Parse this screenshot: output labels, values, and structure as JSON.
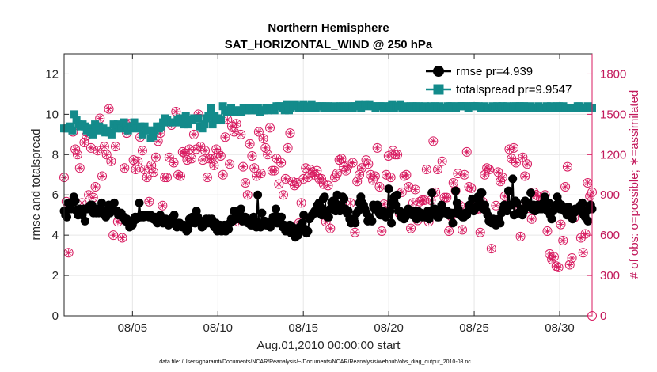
{
  "chart_data": {
    "type": "line",
    "title": "Northern Hemisphere",
    "subtitle": "SAT_HORIZONTAL_WIND @ 250 hPa",
    "xlabel": "Aug.01,2010 00:00:00 start",
    "ylabel": "rmse and totalspread",
    "ylabel_right": "# of obs: o=possible; ∗=assimilated",
    "footnote": "data file: /Users/gharamti/Documents/NCAR/Reanalysis/~/Documents/NCAR/Reanalysis/webpub/obs_diag_output_2010-08.nc",
    "xlim": [
      1.0,
      31.9
    ],
    "ylim": [
      0,
      13
    ],
    "ylim_right": [
      0,
      1950
    ],
    "x_ticks": [
      5,
      10,
      15,
      20,
      25,
      30
    ],
    "x_tick_labels": [
      "08/05",
      "08/10",
      "08/15",
      "08/20",
      "08/25",
      "08/30"
    ],
    "y_ticks": [
      0,
      2,
      4,
      6,
      8,
      10,
      12
    ],
    "y_ticks_right": [
      0,
      300,
      600,
      900,
      1200,
      1500,
      1800
    ],
    "colors": {
      "rmse": "#000000",
      "spread": "#138b8b",
      "obs": "#d81b60",
      "axis": "#262626"
    },
    "series": [
      {
        "name": "rmse pr=4.939",
        "marker": "circle",
        "axis": "left",
        "values": [
          5.2,
          5.0,
          4.9,
          5.6,
          5.5,
          5.3,
          5.6,
          5.9,
          5.7,
          5.2,
          5.0,
          5.3,
          5.2,
          5.0,
          5.3,
          4.7,
          5.3,
          5.3,
          5.4,
          5.5,
          5.5,
          5.1,
          5.2,
          5.1,
          5.3,
          5.1,
          5.3,
          5.6,
          5.2,
          5.0,
          4.9,
          5.2,
          5.5,
          5.1,
          5.2,
          5.3,
          5.6,
          5.2,
          5.2,
          5.0,
          5.0,
          5.1,
          4.9,
          4.9,
          4.7,
          4.8,
          4.6,
          4.4,
          4.5,
          4.5,
          4.7,
          4.9,
          4.8,
          4.9,
          5.6,
          4.9,
          5.0,
          4.9,
          5.0,
          5.0,
          5.0,
          4.9,
          5.0,
          4.9,
          4.8,
          4.9,
          4.7,
          4.6,
          4.8,
          5.0,
          4.7,
          4.6,
          4.7,
          4.8,
          4.6,
          4.5,
          4.6,
          4.7,
          4.9,
          5.0,
          4.5,
          4.4,
          4.6,
          4.6,
          4.5,
          4.4,
          4.5,
          4.4,
          4.2,
          4.3,
          4.8,
          4.6,
          4.9,
          4.8,
          4.6,
          5.2,
          4.9,
          4.7,
          4.7,
          4.4,
          4.5,
          4.7,
          4.8,
          4.6,
          4.8,
          4.7,
          4.8,
          4.5,
          4.4,
          4.6,
          4.2,
          4.4,
          4.5,
          4.2,
          4.4,
          4.5,
          4.2,
          4.4,
          4.3,
          4.6,
          4.8,
          4.7,
          5.2,
          4.9,
          4.8,
          5.1,
          5.1,
          5.3,
          4.7,
          4.9,
          4.9,
          4.8,
          4.6,
          4.7,
          4.5,
          4.5,
          4.9,
          4.7,
          4.4,
          6.0,
          4.5,
          4.4,
          5.1,
          4.6,
          4.7,
          4.5,
          4.6,
          4.6,
          4.4,
          4.7,
          4.9,
          4.8,
          5.3,
          4.6,
          4.9,
          4.7,
          4.9,
          4.4,
          4.5,
          4.2,
          4.3,
          4.4,
          4.5,
          4.1,
          4.4,
          4.3,
          3.9,
          4.2,
          4.0,
          4.4,
          4.3,
          4.6,
          5.0,
          4.3,
          4.1,
          4.2,
          4.8,
          4.9,
          5.0,
          5.1,
          5.2,
          5.1,
          5.5,
          5.6,
          5.4,
          5.0,
          5.8,
          5.9,
          5.2,
          4.9,
          4.9,
          5.3,
          5.6,
          5.7,
          5.3,
          5.2,
          6.0,
          5.5,
          5.2,
          5.4,
          5.9,
          5.8,
          5.3,
          5.1,
          5.2,
          4.8,
          4.6,
          4.8,
          4.8,
          4.6,
          5.1,
          5.2,
          5.6,
          5.9,
          5.6,
          5.5,
          5.3,
          5.1,
          4.7,
          4.9,
          4.8,
          4.7,
          5.5,
          5.3,
          5.3,
          5.5,
          5.1,
          5.0,
          5.0,
          5.2,
          5.0,
          4.9,
          5.1,
          6.3,
          5.2,
          4.6,
          5.6,
          5.9,
          5.5,
          6.0,
          5.2,
          5.2,
          4.9,
          5.0,
          4.8,
          4.9,
          5.0,
          5.3,
          5.2,
          5.2,
          5.0,
          5.2,
          5.2,
          4.8,
          5.2,
          5.0,
          5.1,
          4.9,
          5.0,
          4.9,
          5.0,
          5.2,
          4.8,
          5.0,
          6.1,
          5.1,
          5.3,
          5.0,
          4.9,
          4.9,
          5.2,
          5.5,
          5.2,
          5.1,
          5.1,
          5.2,
          5.0,
          5.0,
          5.1,
          4.6,
          5.1,
          6.2,
          5.6,
          5.3,
          5.0,
          5.0,
          4.9,
          4.9,
          5.1,
          5.0,
          5.2,
          5.5,
          5.3,
          5.8,
          5.2,
          5.3,
          5.4,
          5.9,
          5.6,
          6.1,
          6.1,
          5.3,
          5.5,
          5.2,
          5.0,
          4.7,
          4.8,
          4.6,
          4.8,
          4.6,
          4.5,
          4.7,
          4.8,
          4.6,
          5.1,
          5.3,
          5.5,
          5.4,
          5.2,
          6.2,
          5.5,
          5.5,
          6.8,
          5.0,
          5.7,
          5.6,
          5.1,
          5.1,
          5.3,
          5.0,
          5.2,
          5.7,
          5.6,
          5.5,
          5.4,
          6.1,
          5.3,
          5.5,
          5.2,
          5.3,
          5.5,
          5.3,
          5.3,
          5.3,
          5.6,
          5.9,
          5.4,
          5.2,
          5.6,
          5.0,
          4.8,
          5.2,
          5.3,
          5.5,
          5.9,
          5.6,
          5.3,
          5.5,
          5.4,
          5.2,
          5.2,
          5.0,
          5.4,
          5.1,
          5.0,
          4.8,
          5.1,
          5.3,
          5.2,
          5.3,
          5.4,
          5.5,
          5.6,
          5.0,
          4.9,
          5.2,
          4.7,
          5.4,
          5.5,
          5.3
        ]
      },
      {
        "name": "totalspread pr=9.9547",
        "marker": "square",
        "axis": "left",
        "values": [
          9.3,
          9.3,
          9.3,
          9.4,
          9.2,
          10.0,
          9.7,
          9.5,
          9.4,
          9.5,
          9.4,
          9.2,
          9.3,
          9.1,
          9.0,
          9.5,
          9.3,
          9.4,
          9.2,
          9.3,
          9.1,
          9.2,
          9.1,
          9.0,
          9.5,
          9.3,
          9.5,
          9.3,
          9.3,
          9.6,
          9.4,
          9.2,
          9.3,
          9.4,
          9.6,
          9.3,
          9.3,
          9.4,
          9.0,
          9.4,
          9.2,
          9.2,
          8.8,
          8.9,
          9.2,
          9.4,
          9.3,
          9.4,
          9.6,
          9.8,
          9.7,
          9.6,
          9.6,
          9.6,
          9.6,
          9.7,
          9.8,
          9.6,
          9.5,
          9.9,
          9.5,
          9.7,
          9.7,
          9.8,
          9.8,
          9.8,
          9.4,
          9.3,
          9.5,
          9.8,
          9.9,
          10.3,
          9.5,
          9.9,
          9.7,
          9.8,
          9.7,
          10.4,
          10.2,
          10.1,
          10.2,
          10.3,
          10.1,
          10.2,
          10.1,
          10.2,
          10.1,
          10.3,
          10.2,
          10.2,
          10.3,
          10.2,
          10.3,
          10.2,
          10.3,
          10.1,
          10.2,
          10.2,
          10.3,
          10.2,
          10.3,
          10.3,
          10.2,
          10.4,
          10.4,
          10.4,
          10.3,
          10.2,
          10.5,
          10.2,
          10.3,
          10.4,
          10.5,
          10.4,
          10.3,
          10.4,
          10.5,
          10.3,
          10.3,
          10.4,
          10.5,
          10.3,
          10.3,
          10.4,
          10.4,
          10.4,
          10.3,
          10.4,
          10.4,
          10.3,
          10.3,
          10.4,
          10.3,
          10.3,
          10.4,
          10.4,
          10.3,
          10.3,
          10.4,
          10.4,
          10.3,
          10.4,
          10.4,
          10.5,
          10.3,
          10.4,
          10.5,
          10.4,
          10.5,
          10.4,
          10.4,
          10.3,
          10.4,
          10.4,
          10.4,
          10.3,
          10.4,
          10.3,
          10.4,
          10.5,
          10.3,
          10.4,
          10.4,
          10.5,
          10.3,
          10.4,
          10.3,
          10.3,
          10.4,
          10.4,
          10.3,
          10.4,
          10.4,
          10.3,
          10.3,
          10.4,
          10.3,
          10.3,
          10.4,
          10.3,
          10.4,
          10.3,
          10.4,
          10.3,
          10.3,
          10.3,
          10.4,
          10.4,
          10.4,
          10.3,
          10.3,
          10.4,
          10.4,
          10.4,
          10.4,
          10.4,
          10.3,
          10.4,
          10.4,
          10.4,
          10.4,
          10.4,
          10.3,
          10.3,
          10.4,
          10.3,
          10.3,
          10.3,
          10.4,
          10.3,
          10.4,
          10.3,
          10.4,
          10.4,
          10.3,
          10.4,
          10.3,
          10.3,
          10.4,
          10.4,
          10.3,
          10.4,
          10.4,
          10.4,
          10.3,
          10.3,
          10.4,
          10.3,
          10.3,
          10.3,
          10.4,
          10.3,
          10.3,
          10.3,
          10.4,
          10.3,
          10.4,
          10.3,
          10.3,
          10.4,
          10.4,
          10.3,
          10.4,
          10.3,
          10.3,
          10.3,
          10.3,
          10.3,
          10.3,
          10.4,
          10.4,
          10.3,
          10.3,
          10.3,
          10.4,
          10.3,
          10.3
        ]
      },
      {
        "name": "obs possible",
        "marker": "circle-open",
        "axis": "right",
        "values": [
          1030,
          850,
          470,
          840,
          1370,
          1240,
          1200,
          1100,
          840,
          1290,
          1340,
          900,
          1250,
          880,
          960,
          1230,
          1470,
          1040,
          1260,
          1200,
          1540,
          1150,
          600,
          1260,
          700,
          720,
          580,
          1100,
          1360,
          1430,
          1430,
          1160,
          1090,
          1150,
          1330,
          1230,
          1090,
          1030,
          850,
          1120,
          1070,
          1180,
          1300,
          1360,
          820,
          1030,
          1030,
          1180,
          1420,
          1140,
          1520,
          1050,
          1040,
          1220,
          1210,
          1160,
          1240,
          1170,
          1350,
          1240,
          1500,
          1260,
          1160,
          1230,
          1030,
          1170,
          1170,
          1120,
          1240,
          1210,
          1190,
          1050,
          1330,
          1460,
          1130,
          1410,
          1370,
          1430,
          700,
          1350,
          1110,
          990,
          900,
          1280,
          1190,
          1100,
          1040,
          1370,
          1060,
          1320,
          1250,
          1200,
          1400,
          1080,
          1080,
          1170,
          980,
          1140,
          900,
          1020,
          1250,
          1360,
          1000,
          970,
          990,
          690,
          840,
          1020,
          1100,
          1030,
          1090,
          1070,
          1050,
          1080,
          1020,
          1020,
          980,
          700,
          970,
          650,
          800,
          1030,
          1060,
          1160,
          1170,
          1110,
          1080,
          1120,
          840,
          1140,
          620,
          1000,
          1050,
          1100,
          800,
          1160,
          1130,
          1050,
          1010,
          1040,
          1250,
          960,
          630,
          830,
          1050,
          1190,
          1030,
          1230,
          1200,
          1200,
          760,
          920,
          1040,
          1050,
          960,
          650,
          840,
          940,
          710,
          850,
          860,
          860,
          1090,
          700,
          860,
          1300,
          920,
          1090,
          760,
          1150,
          880,
          880,
          630,
          740,
          990,
          930,
          1060,
          820,
          640,
          1050,
          1220,
          960,
          950,
          830,
          790,
          790,
          620,
          850,
          1050,
          1100,
          1090,
          500,
          700,
          820,
          1070,
          1000,
          1030,
          890,
          810,
          1240,
          1170,
          1250,
          1140,
          820,
          590,
          1180,
          1040,
          1130,
          800,
          720,
          920,
          900,
          890,
          810,
          870,
          900,
          630,
          460,
          420,
          440,
          370,
          360,
          680,
          560,
          960,
          1110,
          380,
          430,
          730,
          790,
          790,
          580,
          470,
          610,
          990,
          890,
          920
        ]
      },
      {
        "name": "obs assimilated",
        "marker": "asterisk",
        "axis": "right",
        "values": [
          1030,
          760,
          470,
          840,
          1370,
          1240,
          1200,
          1100,
          840,
          1290,
          1340,
          900,
          1250,
          880,
          960,
          1230,
          1470,
          1040,
          1260,
          1200,
          1540,
          1150,
          600,
          1260,
          700,
          720,
          580,
          1100,
          1360,
          1430,
          1430,
          1160,
          1090,
          1150,
          1330,
          1230,
          1090,
          1030,
          850,
          1120,
          1070,
          1180,
          1300,
          1360,
          820,
          1030,
          1030,
          1180,
          1420,
          1140,
          1520,
          1050,
          1040,
          1220,
          1210,
          1160,
          1240,
          1170,
          1350,
          1240,
          1500,
          1260,
          1160,
          1230,
          1030,
          1170,
          1170,
          1120,
          1240,
          1210,
          1190,
          1050,
          1330,
          1460,
          1130,
          1410,
          1370,
          1430,
          700,
          1350,
          1110,
          990,
          900,
          1280,
          1190,
          1100,
          1040,
          1370,
          1060,
          1320,
          1250,
          1200,
          1400,
          1080,
          1080,
          1170,
          980,
          1140,
          900,
          1020,
          1250,
          1360,
          1000,
          970,
          990,
          690,
          840,
          1020,
          1100,
          1030,
          1090,
          1070,
          1050,
          1080,
          1020,
          1020,
          980,
          700,
          970,
          650,
          800,
          1030,
          1060,
          1160,
          1170,
          1110,
          1080,
          1120,
          840,
          1140,
          620,
          1000,
          1050,
          1100,
          800,
          1160,
          1130,
          1050,
          1010,
          1040,
          1250,
          960,
          630,
          830,
          1050,
          1190,
          1030,
          1230,
          1200,
          1200,
          760,
          920,
          1040,
          1050,
          960,
          650,
          840,
          940,
          710,
          850,
          860,
          860,
          1090,
          700,
          860,
          1300,
          920,
          1090,
          760,
          1150,
          880,
          880,
          630,
          740,
          990,
          930,
          1060,
          820,
          640,
          1050,
          1220,
          960,
          950,
          830,
          790,
          790,
          620,
          850,
          1050,
          1100,
          1090,
          500,
          700,
          820,
          1070,
          1000,
          1030,
          890,
          810,
          1240,
          1170,
          1250,
          1140,
          820,
          590,
          1180,
          1040,
          1130,
          800,
          720,
          920,
          900,
          890,
          810,
          870,
          900,
          630,
          460,
          420,
          440,
          370,
          360,
          680,
          560,
          960,
          1110,
          380,
          430,
          730,
          790,
          790,
          580,
          470,
          610,
          990,
          890,
          920
        ]
      }
    ],
    "legend": {
      "position": "top-right",
      "entries": [
        "rmse pr=4.939",
        "totalspread pr=9.9547"
      ]
    }
  }
}
